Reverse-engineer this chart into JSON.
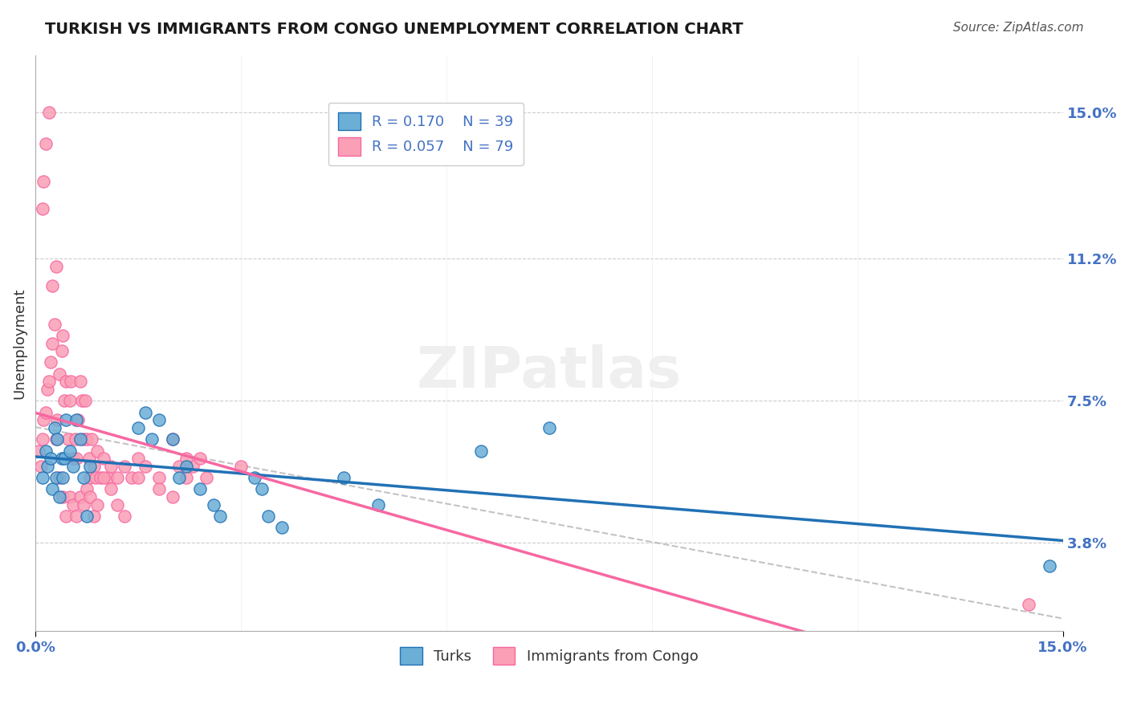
{
  "title": "TURKISH VS IMMIGRANTS FROM CONGO UNEMPLOYMENT CORRELATION CHART",
  "source": "Source: ZipAtlas.com",
  "ylabel": "Unemployment",
  "xlabel_ticks": [
    "0.0%",
    "15.0%"
  ],
  "ytick_labels": [
    "3.8%",
    "7.5%",
    "11.2%",
    "15.0%"
  ],
  "ytick_values": [
    3.8,
    7.5,
    11.2,
    15.0
  ],
  "xmin": 0.0,
  "xmax": 15.0,
  "ymin": 1.5,
  "ymax": 16.5,
  "blue_R": "0.170",
  "blue_N": "39",
  "pink_R": "0.057",
  "pink_N": "79",
  "blue_color": "#6baed6",
  "pink_color": "#fa9fb5",
  "blue_line_color": "#2171b5",
  "pink_line_color": "#f768a1",
  "title_color": "#1a1a1a",
  "axis_label_color": "#4472c4",
  "watermark": "ZIPatlas",
  "turks_x": [
    0.1,
    0.15,
    0.18,
    0.22,
    0.25,
    0.28,
    0.3,
    0.32,
    0.35,
    0.38,
    0.4,
    0.42,
    0.45,
    0.5,
    0.55,
    0.6,
    0.65,
    0.7,
    0.75,
    0.8,
    1.5,
    1.6,
    1.7,
    1.8,
    2.0,
    2.1,
    2.2,
    2.4,
    2.6,
    2.7,
    3.2,
    3.3,
    3.4,
    3.6,
    4.5,
    5.0,
    6.5,
    7.5,
    14.8
  ],
  "turks_y": [
    5.5,
    6.2,
    5.8,
    6.0,
    5.2,
    6.8,
    5.5,
    6.5,
    5.0,
    6.0,
    5.5,
    6.0,
    7.0,
    6.2,
    5.8,
    7.0,
    6.5,
    5.5,
    4.5,
    5.8,
    6.8,
    7.2,
    6.5,
    7.0,
    6.5,
    5.5,
    5.8,
    5.2,
    4.8,
    4.5,
    5.5,
    5.2,
    4.5,
    4.2,
    5.5,
    4.8,
    6.2,
    6.8,
    3.2
  ],
  "congo_x": [
    0.05,
    0.08,
    0.1,
    0.12,
    0.15,
    0.18,
    0.2,
    0.22,
    0.25,
    0.28,
    0.3,
    0.32,
    0.35,
    0.38,
    0.4,
    0.42,
    0.45,
    0.48,
    0.5,
    0.52,
    0.55,
    0.58,
    0.6,
    0.62,
    0.65,
    0.68,
    0.7,
    0.72,
    0.75,
    0.78,
    0.8,
    0.82,
    0.85,
    0.88,
    0.9,
    0.95,
    1.0,
    1.05,
    1.1,
    1.2,
    1.3,
    1.4,
    1.5,
    1.6,
    1.8,
    2.0,
    2.1,
    2.2,
    2.3,
    2.4,
    0.1,
    0.12,
    0.15,
    0.2,
    0.25,
    0.3,
    0.35,
    0.4,
    0.45,
    0.5,
    0.55,
    0.6,
    0.65,
    0.7,
    0.75,
    0.8,
    0.85,
    0.9,
    1.0,
    1.1,
    1.2,
    1.3,
    1.5,
    1.8,
    2.0,
    2.2,
    2.5,
    3.0,
    14.5
  ],
  "congo_y": [
    6.2,
    5.8,
    6.5,
    7.0,
    7.2,
    7.8,
    8.0,
    8.5,
    9.0,
    9.5,
    6.5,
    7.0,
    8.2,
    8.8,
    9.2,
    7.5,
    8.0,
    6.5,
    7.5,
    8.0,
    6.0,
    6.5,
    6.0,
    7.0,
    8.0,
    7.5,
    6.5,
    7.5,
    6.5,
    6.0,
    5.5,
    6.5,
    5.8,
    5.5,
    6.2,
    5.5,
    6.0,
    5.5,
    5.8,
    5.5,
    5.8,
    5.5,
    6.0,
    5.8,
    5.5,
    6.5,
    5.8,
    5.5,
    5.8,
    6.0,
    12.5,
    13.2,
    14.2,
    15.0,
    10.5,
    11.0,
    5.5,
    5.0,
    4.5,
    5.0,
    4.8,
    4.5,
    5.0,
    4.8,
    5.2,
    5.0,
    4.5,
    4.8,
    5.5,
    5.2,
    4.8,
    4.5,
    5.5,
    5.2,
    5.0,
    6.0,
    5.5,
    5.8,
    2.2
  ]
}
